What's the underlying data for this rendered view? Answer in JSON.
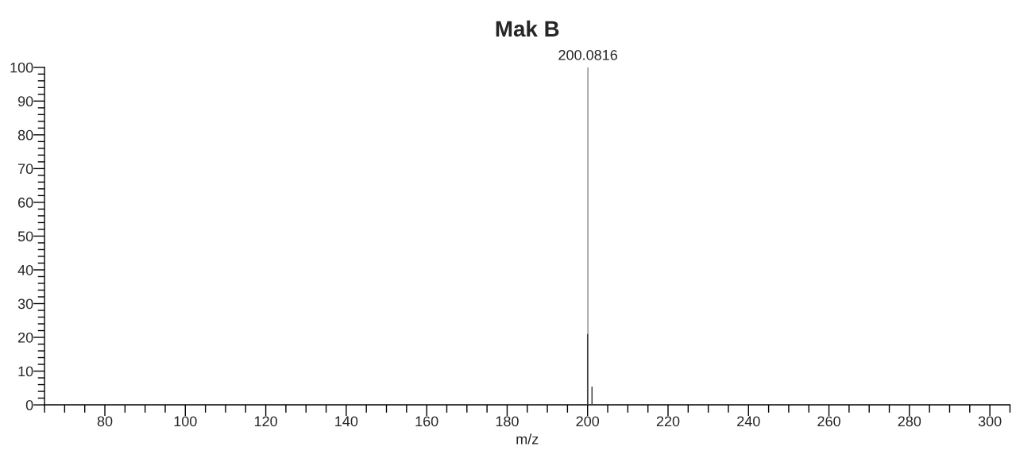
{
  "chart_data": {
    "type": "bar",
    "title": "Mak B",
    "xlabel": "m/z",
    "x": [
      200.0,
      200.0816,
      201.1
    ],
    "values": [
      21,
      100,
      5.4
    ],
    "colors": [
      "#404040",
      "#909090",
      "#404040"
    ],
    "annotations": [
      {
        "text": "200.0816",
        "x": 200.0816,
        "y": 100
      }
    ],
    "xlim": [
      65,
      305
    ],
    "ylim": [
      0,
      100
    ],
    "xticks": [
      {
        "value": 65,
        "label": null
      },
      {
        "value": 70,
        "label": null
      },
      {
        "value": 75,
        "label": null
      },
      80,
      {
        "value": 85,
        "label": null
      },
      {
        "value": 90,
        "label": null
      },
      {
        "value": 95,
        "label": null
      },
      100,
      {
        "value": 105,
        "label": null
      },
      {
        "value": 110,
        "label": null
      },
      {
        "value": 115,
        "label": null
      },
      120,
      {
        "value": 125,
        "label": null
      },
      {
        "value": 130,
        "label": null
      },
      {
        "value": 135,
        "label": null
      },
      140,
      {
        "value": 145,
        "label": null
      },
      {
        "value": 150,
        "label": null
      },
      {
        "value": 155,
        "label": null
      },
      160,
      {
        "value": 165,
        "label": null
      },
      {
        "value": 170,
        "label": null
      },
      {
        "value": 175,
        "label": null
      },
      180,
      {
        "value": 185,
        "label": null
      },
      {
        "value": 190,
        "label": null
      },
      {
        "value": 195,
        "label": null
      },
      200,
      {
        "value": 205,
        "label": null
      },
      {
        "value": 210,
        "label": null
      },
      {
        "value": 215,
        "label": null
      },
      220,
      {
        "value": 225,
        "label": null
      },
      {
        "value": 230,
        "label": null
      },
      {
        "value": 235,
        "label": null
      },
      240,
      {
        "value": 245,
        "label": null
      },
      {
        "value": 250,
        "label": null
      },
      {
        "value": 255,
        "label": null
      },
      260,
      {
        "value": 265,
        "label": null
      },
      {
        "value": 270,
        "label": null
      },
      {
        "value": 275,
        "label": null
      },
      280,
      {
        "value": 285,
        "label": null
      },
      {
        "value": 290,
        "label": null
      },
      {
        "value": 295,
        "label": null
      },
      300,
      {
        "value": 305,
        "label": null
      }
    ],
    "yticks": [
      0,
      {
        "value": 2,
        "label": null
      },
      {
        "value": 4,
        "label": null
      },
      {
        "value": 6,
        "label": null
      },
      {
        "value": 8,
        "label": null
      },
      10,
      {
        "value": 12,
        "label": null
      },
      {
        "value": 14,
        "label": null
      },
      {
        "value": 16,
        "label": null
      },
      {
        "value": 18,
        "label": null
      },
      20,
      {
        "value": 22,
        "label": null
      },
      {
        "value": 24,
        "label": null
      },
      {
        "value": 26,
        "label": null
      },
      {
        "value": 28,
        "label": null
      },
      30,
      {
        "value": 32,
        "label": null
      },
      {
        "value": 34,
        "label": null
      },
      {
        "value": 36,
        "label": null
      },
      {
        "value": 38,
        "label": null
      },
      40,
      {
        "value": 42,
        "label": null
      },
      {
        "value": 44,
        "label": null
      },
      {
        "value": 46,
        "label": null
      },
      {
        "value": 48,
        "label": null
      },
      50,
      {
        "value": 52,
        "label": null
      },
      {
        "value": 54,
        "label": null
      },
      {
        "value": 56,
        "label": null
      },
      {
        "value": 58,
        "label": null
      },
      60,
      {
        "value": 62,
        "label": null
      },
      {
        "value": 64,
        "label": null
      },
      {
        "value": 66,
        "label": null
      },
      {
        "value": 68,
        "label": null
      },
      70,
      {
        "value": 72,
        "label": null
      },
      {
        "value": 74,
        "label": null
      },
      {
        "value": 76,
        "label": null
      },
      {
        "value": 78,
        "label": null
      },
      80,
      {
        "value": 82,
        "label": null
      },
      {
        "value": 84,
        "label": null
      },
      {
        "value": 86,
        "label": null
      },
      {
        "value": 88,
        "label": null
      },
      90,
      {
        "value": 92,
        "label": null
      },
      {
        "value": 94,
        "label": null
      },
      {
        "value": 96,
        "label": null
      },
      {
        "value": 98,
        "label": null
      },
      100
    ],
    "grid": false,
    "legend": false
  }
}
